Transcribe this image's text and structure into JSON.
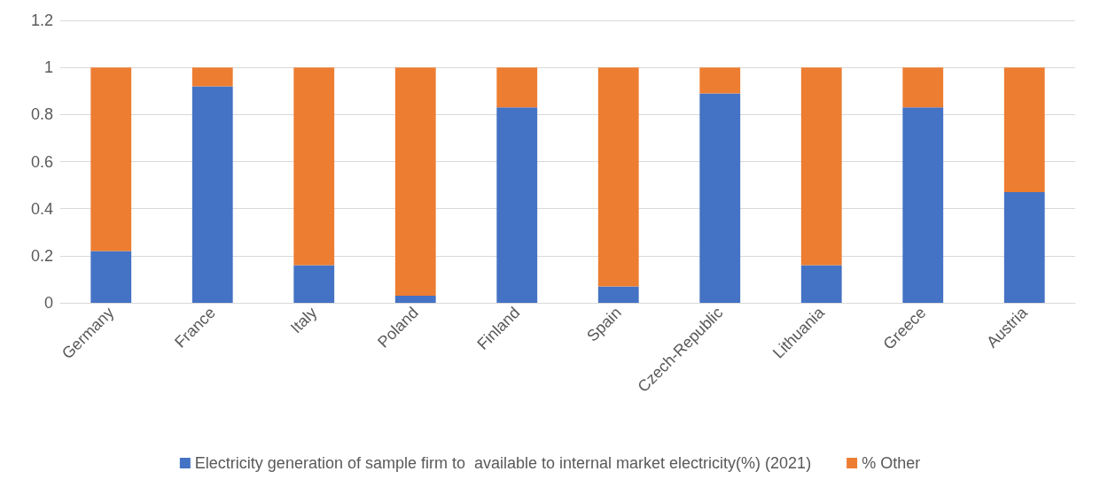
{
  "chart_data": {
    "type": "bar",
    "stacked": true,
    "categories": [
      "Germany",
      "France",
      "Italy",
      "Poland",
      "Finland",
      "Spain",
      "Czech-Republic",
      "Lithuania",
      "Greece",
      "Austria"
    ],
    "series": [
      {
        "name": "Electricity generation of sample firm to  available to internal market electricity(%) (2021)",
        "color": "#4472c4",
        "values": [
          0.22,
          0.92,
          0.16,
          0.03,
          0.83,
          0.07,
          0.89,
          0.16,
          0.83,
          0.47
        ]
      },
      {
        "name": "% Other",
        "color": "#ed7d31",
        "values": [
          0.78,
          0.08,
          0.84,
          0.97,
          0.17,
          0.93,
          0.11,
          0.84,
          0.17,
          0.53
        ]
      }
    ],
    "ylim": [
      0,
      1.2
    ],
    "yticks": [
      0,
      0.2,
      0.4,
      0.6,
      0.8,
      1,
      1.2
    ],
    "grid": "y",
    "legend": "bottom"
  }
}
